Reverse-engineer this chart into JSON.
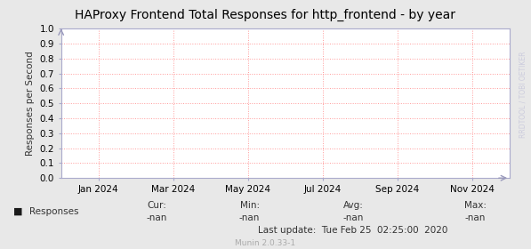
{
  "title": "HAProxy Frontend Total Responses for http_frontend - by year",
  "ylabel": "Responses per Second",
  "background_color": "#e8e8e8",
  "plot_bg_color": "#ffffff",
  "grid_color": "#ff9999",
  "ylim": [
    0.0,
    1.0
  ],
  "yticks": [
    0.0,
    0.1,
    0.2,
    0.3,
    0.4,
    0.5,
    0.6,
    0.7,
    0.8,
    0.9,
    1.0
  ],
  "xtick_labels": [
    "Jan 2024",
    "Mar 2024",
    "May 2024",
    "Jul 2024",
    "Sep 2024",
    "Nov 2024"
  ],
  "legend_label": "Responses",
  "legend_sq_color": "#1a1a1a",
  "cur_label": "Cur:",
  "cur_value": "-nan",
  "min_label": "Min:",
  "min_value": "-nan",
  "avg_label": "Avg:",
  "avg_value": "-nan",
  "max_label": "Max:",
  "max_value": "-nan",
  "last_update": "Last update:  Tue Feb 25  02:25:00  2020",
  "munin_label": "Munin 2.0.33-1",
  "watermark": "RRDTOOL / TOBI OETIKER",
  "title_fontsize": 10,
  "axis_label_fontsize": 7.5,
  "tick_fontsize": 7.5,
  "footer_fontsize": 7.5,
  "munin_fontsize": 6.5,
  "watermark_fontsize": 5.5,
  "spine_color": "#aaaacc",
  "arrow_color": "#9999bb",
  "text_color": "#333333"
}
